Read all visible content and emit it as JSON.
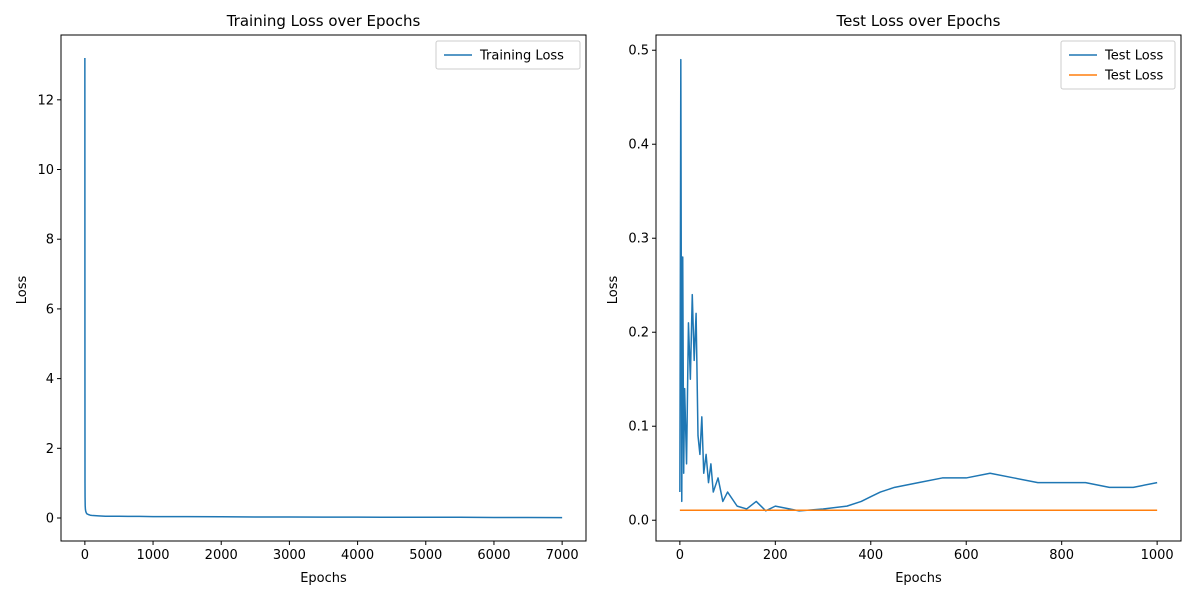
{
  "chart_data": [
    {
      "type": "line",
      "title": "Training Loss over Epochs",
      "xlabel": "Epochs",
      "ylabel": "Loss",
      "xlim": [
        -350,
        7350
      ],
      "ylim": [
        -0.66,
        13.86
      ],
      "xticks": [
        0,
        1000,
        2000,
        3000,
        4000,
        5000,
        6000,
        7000
      ],
      "xtick_labels": [
        "0",
        "1000",
        "2000",
        "3000",
        "4000",
        "5000",
        "6000",
        "7000"
      ],
      "yticks": [
        0,
        2,
        4,
        6,
        8,
        10,
        12
      ],
      "ytick_labels": [
        "0",
        "2",
        "4",
        "6",
        "8",
        "10",
        "12"
      ],
      "legend": "top-right",
      "grid": false,
      "series": [
        {
          "name": "Training Loss",
          "color": "#1f77b4",
          "x": [
            0,
            1,
            2,
            3,
            5,
            8,
            12,
            20,
            30,
            50,
            80,
            120,
            200,
            300,
            500,
            800,
            1000,
            1500,
            2000,
            2500,
            3000,
            3500,
            4000,
            4500,
            5000,
            5500,
            6000,
            6500,
            7000
          ],
          "y": [
            13.2,
            5.0,
            1.0,
            0.6,
            0.35,
            0.25,
            0.2,
            0.15,
            0.12,
            0.1,
            0.08,
            0.07,
            0.06,
            0.05,
            0.05,
            0.045,
            0.04,
            0.04,
            0.035,
            0.03,
            0.03,
            0.025,
            0.025,
            0.02,
            0.02,
            0.02,
            0.015,
            0.015,
            0.01
          ]
        }
      ]
    },
    {
      "type": "line",
      "title": "Test Loss over Epochs",
      "xlabel": "Epochs",
      "ylabel": "Loss",
      "xlim": [
        -50,
        1050
      ],
      "ylim": [
        -0.0221,
        0.5162
      ],
      "xticks": [
        0,
        200,
        400,
        600,
        800,
        1000
      ],
      "xtick_labels": [
        "0",
        "200",
        "400",
        "600",
        "800",
        "1000"
      ],
      "yticks": [
        0.0,
        0.1,
        0.2,
        0.3,
        0.4,
        0.5
      ],
      "ytick_labels": [
        "0.0",
        "0.1",
        "0.2",
        "0.3",
        "0.4",
        "0.5"
      ],
      "legend": "top-right",
      "grid": false,
      "series": [
        {
          "name": "Test Loss",
          "color": "#1f77b4",
          "x": [
            0,
            2,
            4,
            6,
            8,
            10,
            14,
            18,
            22,
            26,
            30,
            34,
            38,
            42,
            46,
            50,
            55,
            60,
            65,
            70,
            80,
            90,
            100,
            120,
            140,
            160,
            180,
            200,
            250,
            300,
            350,
            380,
            400,
            420,
            450,
            500,
            550,
            600,
            650,
            700,
            750,
            800,
            850,
            900,
            950,
            1000
          ],
          "y": [
            0.03,
            0.49,
            0.02,
            0.28,
            0.05,
            0.14,
            0.06,
            0.21,
            0.15,
            0.24,
            0.17,
            0.22,
            0.09,
            0.07,
            0.11,
            0.05,
            0.07,
            0.04,
            0.06,
            0.03,
            0.045,
            0.02,
            0.03,
            0.015,
            0.012,
            0.02,
            0.01,
            0.015,
            0.01,
            0.012,
            0.015,
            0.02,
            0.025,
            0.03,
            0.035,
            0.04,
            0.045,
            0.045,
            0.05,
            0.045,
            0.04,
            0.04,
            0.04,
            0.035,
            0.035,
            0.04
          ]
        },
        {
          "name": "Test Loss",
          "color": "#ff7f0e",
          "x": [
            0,
            1000
          ],
          "y": [
            0.0106,
            0.0106
          ]
        }
      ]
    }
  ]
}
